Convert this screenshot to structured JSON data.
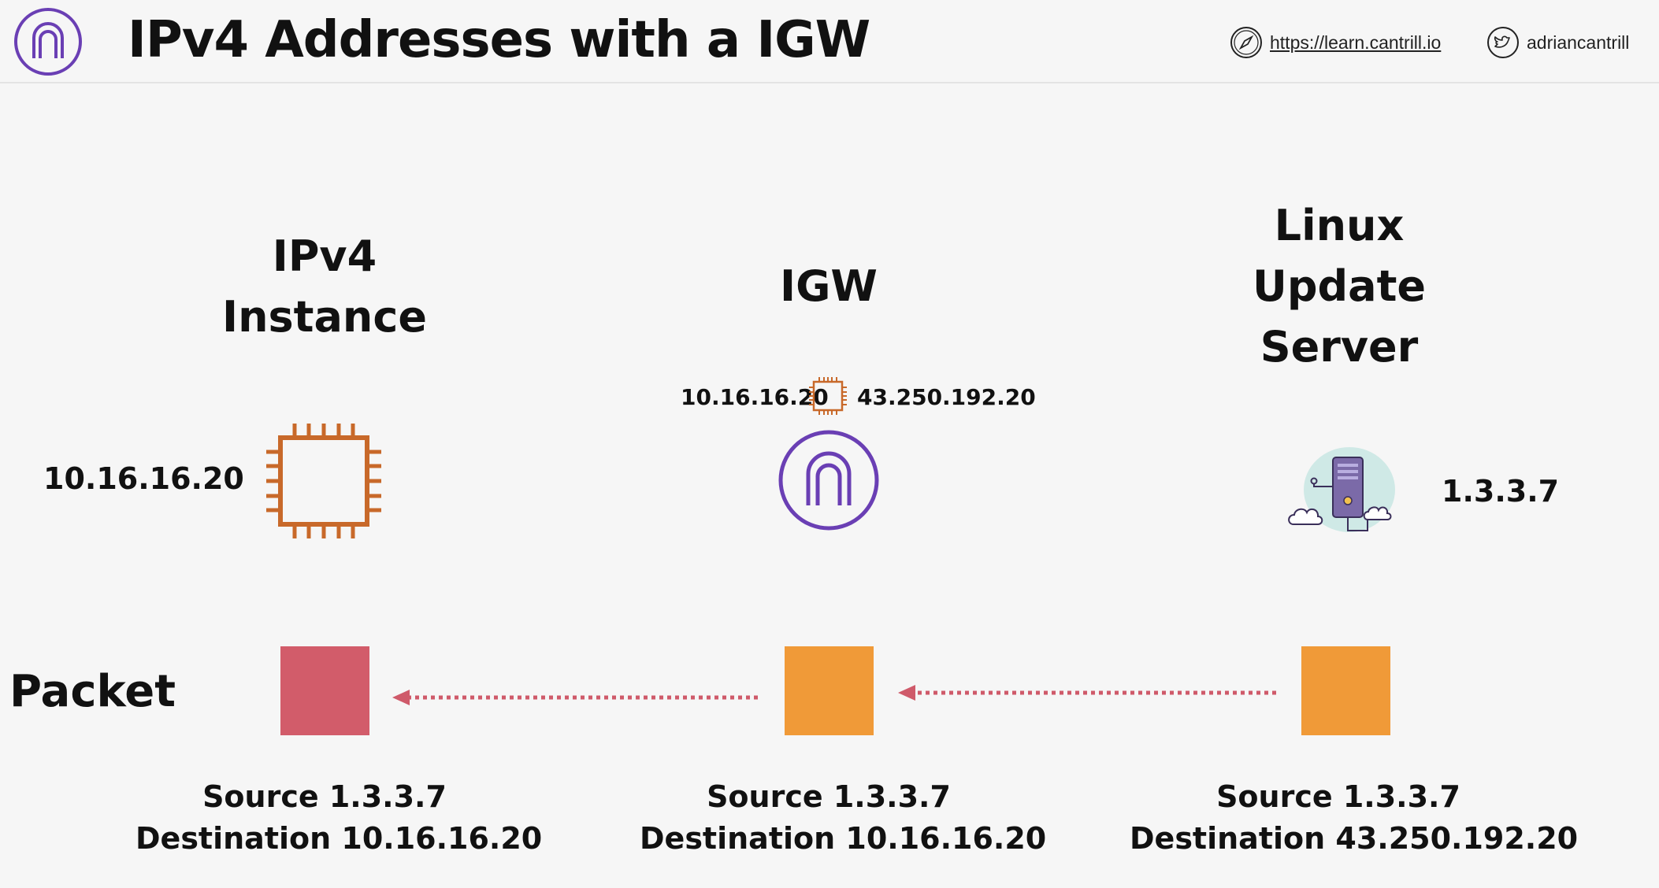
{
  "header": {
    "title": "IPv4 Addresses with a IGW",
    "website": "https://learn.cantrill.io",
    "twitter": "adriancantrill",
    "logo_icon": "igw-arch-icon",
    "website_icon": "compass-icon",
    "twitter_icon": "twitter-bird-icon"
  },
  "columns": {
    "instance": {
      "heading": "IPv4\nInstance",
      "ip": "10.16.16.20",
      "icon": "cpu-chip-icon"
    },
    "igw": {
      "heading": "IGW",
      "private_ip": "10.16.16.20",
      "public_ip": "43.250.192.20",
      "icon": "internet-gateway-icon",
      "mapping_icon": "cpu-chip-icon"
    },
    "server": {
      "heading": "Linux\nUpdate\nServer",
      "ip": "1.3.3.7",
      "icon": "cloud-server-icon"
    }
  },
  "packet": {
    "label": "Packet",
    "stages": [
      {
        "source": "Source  1.3.3.7",
        "destination": "Destination 10.16.16.20",
        "color": "#d25c6a"
      },
      {
        "source": "Source 1.3.3.7",
        "destination": "Destination 10.16.16.20",
        "color": "#f09a38"
      },
      {
        "source": "Source 1.3.3.7",
        "destination": "Destination 43.250.192.20",
        "color": "#f09a38"
      }
    ]
  },
  "colors": {
    "accent_purple": "#6a3fb4",
    "chip_orange": "#c8692a",
    "arrow": "#cf5a6a",
    "packet_red": "#d25c6a",
    "packet_orange": "#f09a38"
  }
}
